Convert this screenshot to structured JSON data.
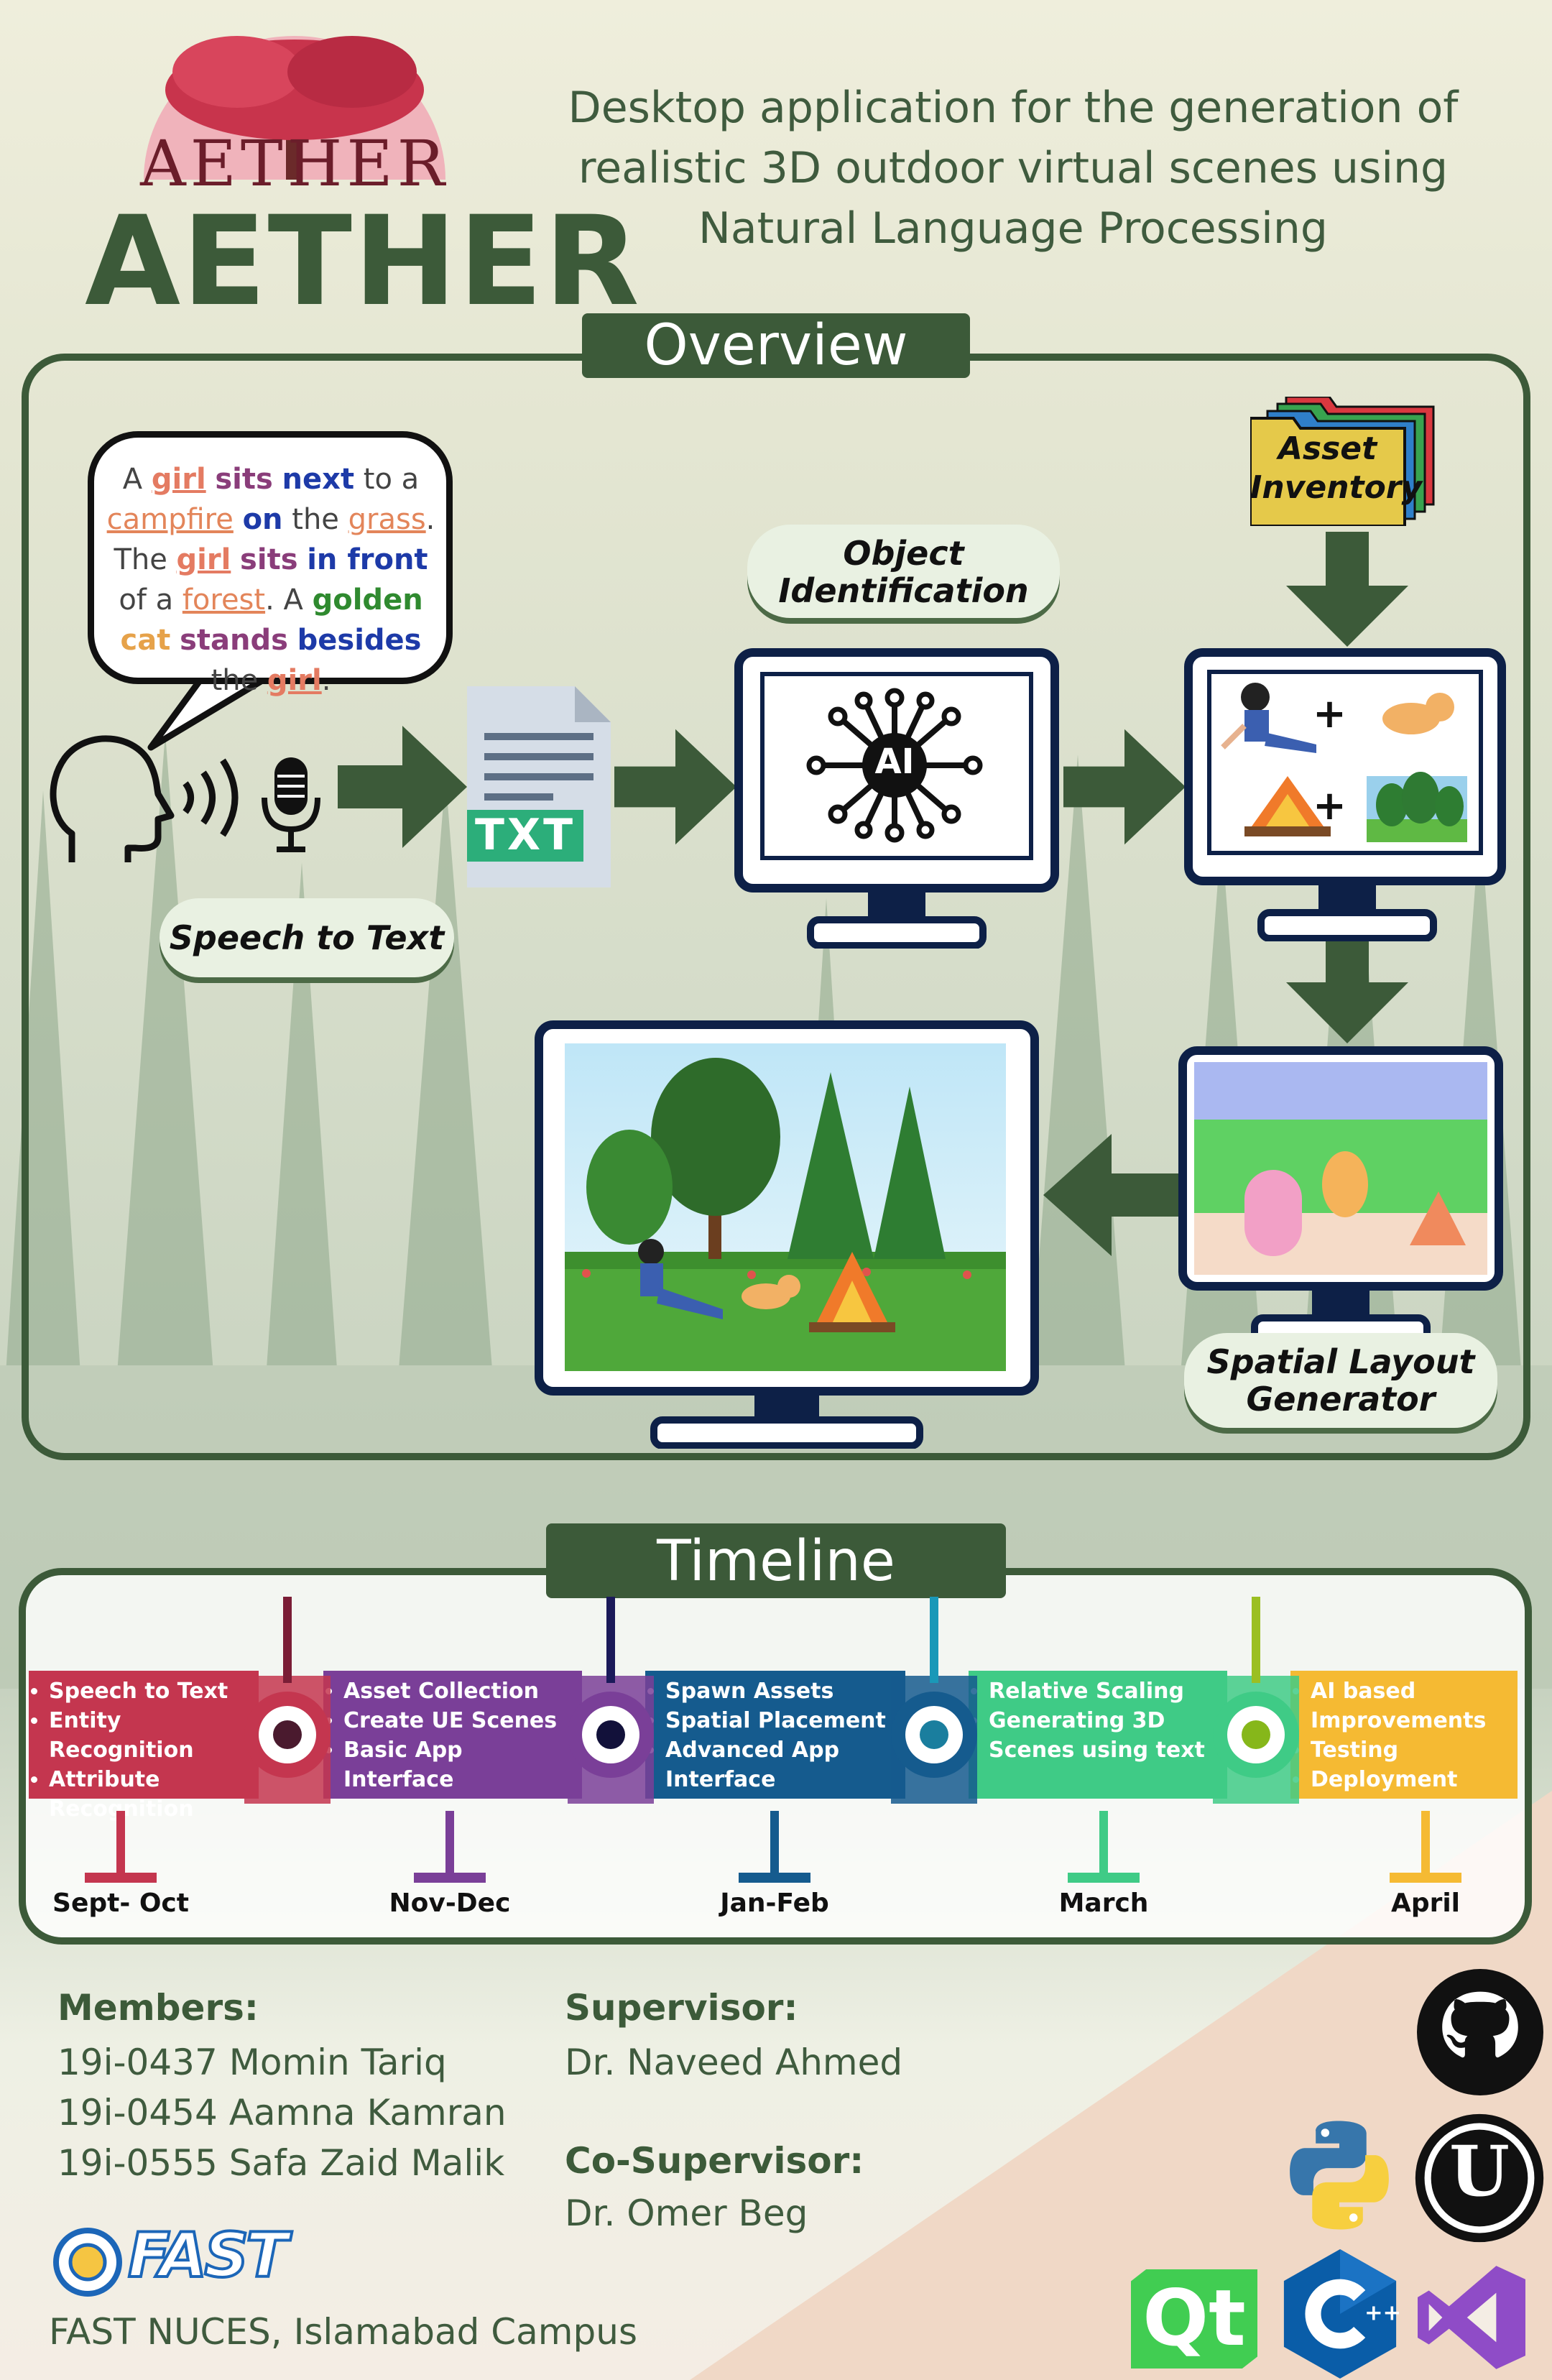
{
  "logo": {
    "wordmark": "AETHER"
  },
  "header": {
    "brand": "AETHER",
    "headline_lines": [
      "Desktop application for the generation  of",
      "realistic 3D outdoor virtual scenes using",
      "Natural Language Processing"
    ]
  },
  "overview": {
    "title": "Overview",
    "sentence": [
      {
        "t": "A ",
        "c": "plain"
      },
      {
        "t": "girl",
        "c": "girl"
      },
      {
        "t": " ",
        "c": "plain"
      },
      {
        "t": "sits",
        "c": "verb"
      },
      {
        "t": " ",
        "c": "plain"
      },
      {
        "t": "next",
        "c": "prep"
      },
      {
        "t": " to a ",
        "c": "plain"
      },
      {
        "t": "campfire",
        "c": "obj"
      },
      {
        "t": " ",
        "c": "plain"
      },
      {
        "t": "on",
        "c": "prep"
      },
      {
        "t": " the ",
        "c": "plain"
      },
      {
        "t": "grass",
        "c": "obj"
      },
      {
        "t": ". ",
        "c": "plain"
      },
      {
        "t": "The ",
        "c": "plain"
      },
      {
        "t": "girl",
        "c": "girl"
      },
      {
        "t": " ",
        "c": "plain"
      },
      {
        "t": "sits",
        "c": "verb"
      },
      {
        "t": " ",
        "c": "plain"
      },
      {
        "t": "in front",
        "c": "prep"
      },
      {
        "t": " of a ",
        "c": "plain"
      },
      {
        "t": "forest",
        "c": "obj"
      },
      {
        "t": ". A ",
        "c": "plain"
      },
      {
        "t": "golden",
        "c": "attr"
      },
      {
        "t": " ",
        "c": "plain"
      },
      {
        "t": "cat",
        "c": "cat"
      },
      {
        "t": " ",
        "c": "plain"
      },
      {
        "t": "stands",
        "c": "verb"
      },
      {
        "t": " ",
        "c": "plain"
      },
      {
        "t": "besides",
        "c": "prep"
      },
      {
        "t": " the ",
        "c": "plain"
      },
      {
        "t": "girl",
        "c": "girl"
      },
      {
        "t": ".",
        "c": "plain"
      }
    ],
    "speech_to_text": "Speech to Text",
    "txt_badge": "TXT",
    "object_identification_1": "Object",
    "object_identification_2": "Identification",
    "ai_badge": "AI",
    "asset_inventory_1": "Asset",
    "asset_inventory_2": "Inventory",
    "spatial_layout_1": "Spatial Layout",
    "spatial_layout_2": "Generator"
  },
  "timeline": {
    "title": "Timeline",
    "phases": [
      {
        "color": "#c4364f",
        "items": [
          "Speech to Text",
          "Entity Recognition",
          "Attribute",
          "Recognition"
        ],
        "bullets": [
          true,
          true,
          true,
          false
        ],
        "label": "Sept- Oct"
      },
      {
        "color": "#7a3f98",
        "items": [
          "Asset Collection",
          "Create UE Scenes",
          "Basic App",
          "Interface"
        ],
        "bullets": [
          true,
          true,
          true,
          false
        ],
        "label": "Nov-Dec"
      },
      {
        "color": "#155b8e",
        "items": [
          "Spawn Assets",
          "Spatial Placement",
          "Advanced App",
          "Interface"
        ],
        "bullets": [
          true,
          true,
          true,
          false
        ],
        "label": "Jan-Feb"
      },
      {
        "color": "#3fcb86",
        "items": [
          "Relative Scaling",
          "Generating 3D",
          "Scenes using text"
        ],
        "bullets": [
          true,
          true,
          false
        ],
        "label": "March"
      },
      {
        "color": "#f5ba33",
        "items": [
          "AI based",
          "Improvements",
          "Testing",
          "Deployment"
        ],
        "bullets": [
          true,
          false,
          true,
          true
        ],
        "label": "April"
      }
    ]
  },
  "footer": {
    "members_label": "Members:",
    "members": [
      "19i-0437 Momin Tariq",
      "19i-0454 Aamna Kamran",
      "19i-0555 Safa Zaid Malik"
    ],
    "supervisor_label": "Supervisor:",
    "supervisor": "Dr. Naveed Ahmed",
    "co_supervisor_label": "Co-Supervisor:",
    "co_supervisor": "Dr. Omer Beg",
    "university": "FAST NUCES,  Islamabad Campus",
    "fast_logo": "FAST",
    "qt_logo": "Qt",
    "unreal_logo": "U"
  }
}
